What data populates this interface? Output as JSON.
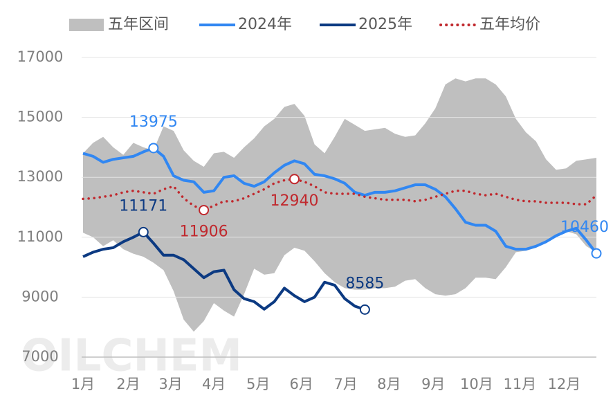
{
  "chart_data": {
    "type": "line",
    "watermark": "OILCHEM",
    "x": [
      1,
      2,
      3,
      4,
      5,
      6,
      7,
      8,
      9,
      10,
      11,
      12,
      13,
      14,
      15,
      16,
      17,
      18,
      19,
      20,
      21,
      22,
      23,
      24,
      25,
      26,
      27,
      28,
      29,
      30,
      31,
      32,
      33,
      34,
      35,
      36,
      37,
      38,
      39,
      40,
      41,
      42,
      43,
      44,
      45,
      46,
      47,
      48,
      49,
      50,
      51,
      52
    ],
    "xlim": [
      1,
      52
    ],
    "xticks": [
      {
        "value": 1,
        "label": "1月"
      },
      {
        "value": 5.5,
        "label": "2月"
      },
      {
        "value": 9.7,
        "label": "3月"
      },
      {
        "value": 14,
        "label": "4月"
      },
      {
        "value": 18.4,
        "label": "5月"
      },
      {
        "value": 22.7,
        "label": "6月"
      },
      {
        "value": 27.1,
        "label": "7月"
      },
      {
        "value": 31.4,
        "label": "8月"
      },
      {
        "value": 35.8,
        "label": "9月"
      },
      {
        "value": 40.1,
        "label": "10月"
      },
      {
        "value": 44.4,
        "label": "11月"
      },
      {
        "value": 48.8,
        "label": "12月"
      }
    ],
    "ylim": [
      7000,
      17000
    ],
    "yticks": [
      7000,
      9000,
      11000,
      13000,
      15000,
      17000
    ],
    "grid": true,
    "legend": "top",
    "series": [
      {
        "name": "五年区间",
        "type": "band",
        "color": "#bfbfbf",
        "upper": [
          13800,
          14150,
          14350,
          14000,
          13750,
          14150,
          14000,
          13900,
          14700,
          14550,
          13900,
          13550,
          13350,
          13800,
          13850,
          13650,
          14000,
          14300,
          14700,
          14950,
          15350,
          15450,
          15050,
          14100,
          13800,
          14350,
          14950,
          14750,
          14550,
          14600,
          14650,
          14450,
          14350,
          14400,
          14800,
          15300,
          16100,
          16300,
          16200,
          16300,
          16300,
          16100,
          15700,
          14950,
          14500,
          14200,
          13600,
          13250,
          13300,
          13550,
          13600,
          13650
        ],
        "lower": [
          11150,
          11000,
          10700,
          10900,
          10600,
          10450,
          10350,
          10150,
          9900,
          9200,
          8250,
          7850,
          8200,
          8800,
          8550,
          8350,
          9100,
          9950,
          9750,
          9800,
          10400,
          10650,
          10550,
          10200,
          9800,
          9500,
          9300,
          9250,
          9250,
          9300,
          9300,
          9350,
          9550,
          9600,
          9300,
          9100,
          9050,
          9100,
          9300,
          9650,
          9650,
          9600,
          10000,
          10500,
          10550,
          10650,
          10850,
          11050,
          11200,
          11100,
          10700,
          10500
        ]
      },
      {
        "name": "2024年",
        "type": "line",
        "color": "#3187f2",
        "dash": "solid",
        "label_position": "above",
        "labeled_points": [
          7,
          51
        ],
        "values": [
          13800,
          13700,
          13500,
          13600,
          13650,
          13700,
          13850,
          13975,
          13700,
          13050,
          12900,
          12850,
          12500,
          12550,
          13000,
          13050,
          12800,
          12700,
          12850,
          13150,
          13400,
          13550,
          13450,
          13100,
          13050,
          12950,
          12800,
          12500,
          12400,
          12500,
          12500,
          12550,
          12650,
          12750,
          12750,
          12600,
          12350,
          11950,
          11500,
          11400,
          11400,
          11200,
          10700,
          10600,
          10600,
          10700,
          10850,
          11050,
          11200,
          11300,
          10900,
          10460
        ]
      },
      {
        "name": "2025年",
        "type": "line",
        "color": "#0c3a82",
        "dash": "solid",
        "label_position": "above",
        "labeled_points": [
          6,
          28
        ],
        "values": [
          10350,
          10500,
          10600,
          10650,
          10850,
          11000,
          11171,
          10800,
          10400,
          10400,
          10250,
          9950,
          9650,
          9850,
          9900,
          9250,
          8950,
          8850,
          8600,
          8850,
          9300,
          9050,
          8850,
          9000,
          9500,
          9400,
          8950,
          8700,
          8585,
          null,
          null,
          null,
          null,
          null,
          null,
          null,
          null,
          null,
          null,
          null,
          null,
          null,
          null,
          null,
          null,
          null,
          null,
          null,
          null,
          null,
          null,
          null
        ]
      },
      {
        "name": "五年均价",
        "type": "line",
        "color": "#c0282d",
        "dash": "dotted",
        "label_position": "below",
        "labeled_points": [
          12,
          21
        ],
        "values": [
          12280,
          12300,
          12350,
          12400,
          12500,
          12550,
          12500,
          12450,
          12600,
          12700,
          12300,
          12050,
          11906,
          12050,
          12200,
          12200,
          12300,
          12450,
          12600,
          12800,
          12900,
          12940,
          12850,
          12700,
          12500,
          12450,
          12450,
          12450,
          12350,
          12300,
          12250,
          12250,
          12250,
          12200,
          12250,
          12350,
          12450,
          12550,
          12550,
          12450,
          12400,
          12450,
          12350,
          12250,
          12200,
          12200,
          12150,
          12150,
          12150,
          12100,
          12100,
          12400
        ]
      }
    ]
  }
}
